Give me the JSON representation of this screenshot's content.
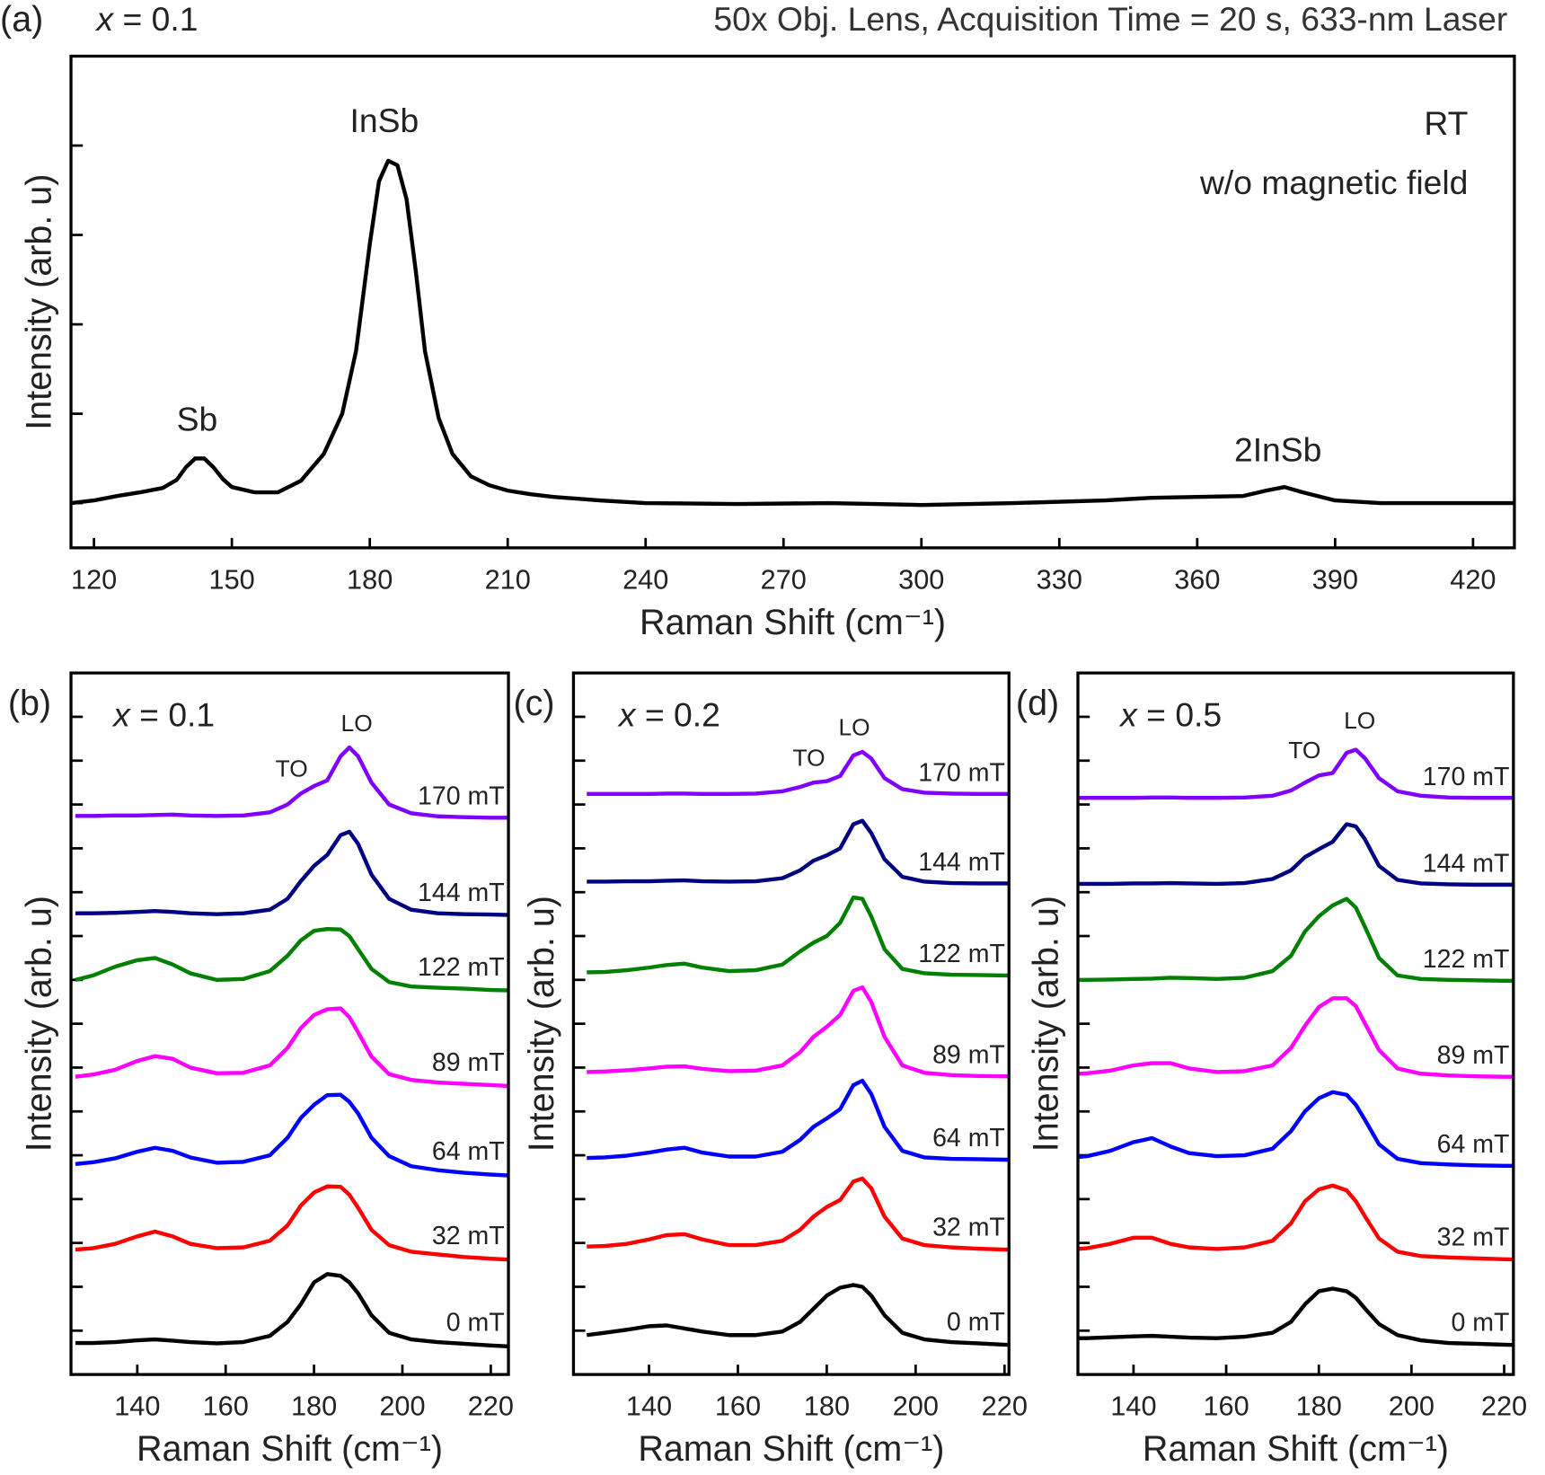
{
  "chart_data": [
    {
      "type": "line",
      "panel_label": "(a)",
      "panel_title": "x = 0.1",
      "title": "50x Obj. Lens, Acquisition Time = 20 s, 633-nm Laser",
      "annotations": [
        "RT",
        "w/o magnetic field"
      ],
      "peak_labels": [
        "Sb",
        "InSb",
        "2InSb"
      ],
      "xlabel": "Raman Shift (cm⁻¹)",
      "ylabel": "Intensity (arb. u)",
      "xlim": [
        115,
        429
      ],
      "xticks": [
        120,
        150,
        180,
        210,
        240,
        270,
        300,
        330,
        360,
        390,
        420
      ],
      "ylim": [
        -0.5,
        5
      ],
      "yticks": [
        0,
        1,
        2,
        3,
        4
      ],
      "color": "#000000",
      "x": [
        115,
        120,
        125,
        130,
        135,
        138,
        140,
        142,
        144,
        146,
        148,
        150,
        155,
        160,
        165,
        170,
        174,
        177,
        180,
        182,
        184,
        186,
        188,
        190,
        192,
        195,
        198,
        202,
        206,
        210,
        215,
        220,
        230,
        240,
        260,
        280,
        300,
        320,
        340,
        350,
        360,
        370,
        375,
        379,
        383,
        390,
        400,
        410,
        429
      ],
      "values": [
        0.0,
        0.03,
        0.08,
        0.12,
        0.17,
        0.26,
        0.4,
        0.5,
        0.5,
        0.4,
        0.27,
        0.18,
        0.12,
        0.12,
        0.25,
        0.55,
        1.0,
        1.7,
        2.9,
        3.6,
        3.83,
        3.78,
        3.4,
        2.6,
        1.7,
        0.95,
        0.55,
        0.3,
        0.2,
        0.14,
        0.1,
        0.07,
        0.03,
        0.0,
        -0.01,
        0.0,
        -0.02,
        0.0,
        0.03,
        0.06,
        0.07,
        0.08,
        0.14,
        0.18,
        0.12,
        0.03,
        0.0,
        0.0,
        0.0
      ]
    },
    {
      "type": "line",
      "panel_label": "(b)",
      "panel_title": "x = 0.1",
      "peak_labels": [
        "TO",
        "LO"
      ],
      "xlabel": "Raman Shift (cm⁻¹)",
      "ylabel": "Intensity (arb. u)",
      "xlim": [
        125,
        224
      ],
      "xticks": [
        140,
        160,
        180,
        200,
        220
      ],
      "ylim": [
        0,
        16
      ],
      "yticks": [
        1,
        2,
        3,
        4,
        5,
        6,
        7,
        8,
        9,
        10,
        11,
        12,
        13,
        14,
        15
      ],
      "x": [
        126,
        130,
        135,
        140,
        144,
        148,
        152,
        158,
        164,
        170,
        174,
        177,
        180,
        183,
        186,
        188,
        190,
        193,
        197,
        202,
        208,
        214,
        220,
        224
      ],
      "series": [
        {
          "name": "0 mT",
          "color": "#000000",
          "values": [
            0.72,
            0.72,
            0.74,
            0.78,
            0.8,
            0.77,
            0.74,
            0.71,
            0.74,
            0.88,
            1.2,
            1.6,
            2.1,
            2.29,
            2.25,
            2.1,
            1.85,
            1.35,
            0.95,
            0.8,
            0.74,
            0.7,
            0.66,
            0.64
          ]
        },
        {
          "name": "32 mT",
          "color": "#ff0000",
          "values": [
            2.85,
            2.88,
            2.98,
            3.15,
            3.26,
            3.15,
            2.98,
            2.88,
            2.9,
            3.05,
            3.4,
            3.85,
            4.15,
            4.29,
            4.28,
            4.1,
            3.8,
            3.3,
            2.95,
            2.8,
            2.74,
            2.68,
            2.64,
            2.62
          ]
        },
        {
          "name": "64 mT",
          "color": "#0000ff",
          "values": [
            4.8,
            4.84,
            4.93,
            5.08,
            5.17,
            5.1,
            4.95,
            4.83,
            4.85,
            5.0,
            5.4,
            5.85,
            6.15,
            6.37,
            6.38,
            6.22,
            5.95,
            5.4,
            4.98,
            4.75,
            4.66,
            4.6,
            4.56,
            4.54
          ]
        },
        {
          "name": "89 mT",
          "color": "#ff00ff",
          "values": [
            6.79,
            6.84,
            6.95,
            7.15,
            7.26,
            7.2,
            7.0,
            6.87,
            6.88,
            7.05,
            7.45,
            7.9,
            8.2,
            8.33,
            8.35,
            8.15,
            7.8,
            7.25,
            6.85,
            6.72,
            6.66,
            6.63,
            6.6,
            6.58
          ]
        },
        {
          "name": "122 mT",
          "color": "#008000",
          "values": [
            9.0,
            9.1,
            9.3,
            9.45,
            9.5,
            9.35,
            9.15,
            9.0,
            9.02,
            9.2,
            9.55,
            9.9,
            10.12,
            10.16,
            10.15,
            10.0,
            9.7,
            9.25,
            8.95,
            8.85,
            8.82,
            8.8,
            8.77,
            8.76
          ]
        },
        {
          "name": "144 mT",
          "color": "#000080",
          "values": [
            10.52,
            10.52,
            10.53,
            10.55,
            10.57,
            10.55,
            10.52,
            10.5,
            10.52,
            10.6,
            10.85,
            11.25,
            11.6,
            11.85,
            12.3,
            12.38,
            12.1,
            11.4,
            10.85,
            10.6,
            10.52,
            10.5,
            10.49,
            10.48
          ]
        },
        {
          "name": "170 mT",
          "color": "#8000ff",
          "values": [
            12.74,
            12.74,
            12.75,
            12.75,
            12.76,
            12.77,
            12.75,
            12.74,
            12.75,
            12.82,
            13.0,
            13.25,
            13.42,
            13.55,
            14.1,
            14.3,
            14.1,
            13.5,
            13.0,
            12.8,
            12.73,
            12.71,
            12.7,
            12.7
          ]
        }
      ]
    },
    {
      "type": "line",
      "panel_label": "(c)",
      "panel_title": "x = 0.2",
      "peak_labels": [
        "TO",
        "LO"
      ],
      "xlabel": "Raman Shift (cm⁻¹)",
      "ylabel": "Intensity (arb. u)",
      "xlim": [
        123,
        221
      ],
      "xticks": [
        140,
        160,
        180,
        200,
        220
      ],
      "ylim": [
        0,
        16
      ],
      "yticks": [
        1,
        2,
        3,
        4,
        5,
        6,
        7,
        8,
        9,
        10,
        11,
        12,
        13,
        14,
        15
      ],
      "x": [
        126,
        130,
        135,
        140,
        144,
        148,
        152,
        158,
        164,
        170,
        174,
        177,
        180,
        183,
        186,
        188,
        190,
        193,
        197,
        202,
        208,
        214,
        220,
        224
      ],
      "series": [
        {
          "name": "0 mT",
          "color": "#000000",
          "values": [
            0.9,
            0.95,
            1.02,
            1.1,
            1.12,
            1.05,
            0.98,
            0.9,
            0.9,
            0.98,
            1.2,
            1.5,
            1.8,
            1.98,
            2.04,
            2.0,
            1.8,
            1.35,
            0.95,
            0.8,
            0.74,
            0.71,
            0.68,
            0.67
          ]
        },
        {
          "name": "32 mT",
          "color": "#ff0000",
          "values": [
            2.92,
            2.93,
            2.98,
            3.08,
            3.18,
            3.2,
            3.08,
            2.95,
            2.95,
            3.05,
            3.3,
            3.6,
            3.82,
            3.98,
            4.4,
            4.47,
            4.25,
            3.6,
            3.1,
            2.95,
            2.9,
            2.87,
            2.85,
            2.85
          ]
        },
        {
          "name": "64 mT",
          "color": "#0000ff",
          "values": [
            4.94,
            4.95,
            4.99,
            5.06,
            5.13,
            5.17,
            5.06,
            4.97,
            4.97,
            5.08,
            5.35,
            5.65,
            5.84,
            6.05,
            6.6,
            6.7,
            6.4,
            5.65,
            5.1,
            4.95,
            4.92,
            4.91,
            4.9,
            4.9
          ]
        },
        {
          "name": "89 mT",
          "color": "#ff00ff",
          "values": [
            6.9,
            6.91,
            6.94,
            6.98,
            7.02,
            7.03,
            6.97,
            6.92,
            6.93,
            7.05,
            7.35,
            7.7,
            7.93,
            8.2,
            8.75,
            8.83,
            8.5,
            7.7,
            7.05,
            6.88,
            6.83,
            6.81,
            6.8,
            6.79
          ]
        },
        {
          "name": "122 mT",
          "color": "#008000",
          "values": [
            9.17,
            9.18,
            9.22,
            9.28,
            9.34,
            9.37,
            9.28,
            9.2,
            9.22,
            9.35,
            9.65,
            9.85,
            10.0,
            10.3,
            10.88,
            10.85,
            10.45,
            9.7,
            9.25,
            9.15,
            9.12,
            9.11,
            9.1,
            9.1
          ]
        },
        {
          "name": "144 mT",
          "color": "#000080",
          "values": [
            11.24,
            11.24,
            11.25,
            11.25,
            11.26,
            11.27,
            11.25,
            11.24,
            11.25,
            11.32,
            11.5,
            11.72,
            11.84,
            12.0,
            12.55,
            12.63,
            12.35,
            11.75,
            11.35,
            11.24,
            11.21,
            11.2,
            11.2,
            11.2
          ]
        },
        {
          "name": "170 mT",
          "color": "#8000ff",
          "values": [
            13.24,
            13.24,
            13.24,
            13.24,
            13.25,
            13.25,
            13.24,
            13.24,
            13.25,
            13.3,
            13.4,
            13.5,
            13.53,
            13.65,
            14.12,
            14.2,
            14.05,
            13.6,
            13.35,
            13.27,
            13.25,
            13.24,
            13.24,
            13.24
          ]
        }
      ]
    },
    {
      "type": "line",
      "panel_label": "(d)",
      "panel_title": "x = 0.5",
      "peak_labels": [
        "TO",
        "LO"
      ],
      "xlabel": "Raman Shift (cm⁻¹)",
      "ylabel": "Intensity (arb. u)",
      "xlim": [
        128,
        222
      ],
      "xticks": [
        140,
        160,
        180,
        200,
        220
      ],
      "ylim": [
        0,
        16
      ],
      "yticks": [
        1,
        2,
        3,
        4,
        5,
        6,
        7,
        8,
        9,
        10,
        11,
        12,
        13,
        14,
        15
      ],
      "x": [
        126,
        130,
        135,
        140,
        144,
        148,
        152,
        158,
        164,
        170,
        174,
        177,
        180,
        183,
        186,
        188,
        190,
        193,
        197,
        202,
        208,
        214,
        220,
        224
      ],
      "series": [
        {
          "name": "0 mT",
          "color": "#000000",
          "values": [
            0.83,
            0.83,
            0.85,
            0.87,
            0.88,
            0.86,
            0.84,
            0.83,
            0.86,
            0.95,
            1.2,
            1.6,
            1.9,
            1.96,
            1.9,
            1.75,
            1.5,
            1.15,
            0.9,
            0.78,
            0.72,
            0.7,
            0.68,
            0.67
          ]
        },
        {
          "name": "32 mT",
          "color": "#ff0000",
          "values": [
            2.85,
            2.88,
            2.98,
            3.12,
            3.12,
            2.98,
            2.9,
            2.86,
            2.9,
            3.05,
            3.45,
            3.95,
            4.22,
            4.31,
            4.2,
            3.95,
            3.6,
            3.1,
            2.8,
            2.7,
            2.67,
            2.65,
            2.63,
            2.62
          ]
        },
        {
          "name": "64 mT",
          "color": "#0000ff",
          "values": [
            4.94,
            4.98,
            5.1,
            5.3,
            5.39,
            5.2,
            5.05,
            4.98,
            5.0,
            5.15,
            5.55,
            6.0,
            6.3,
            6.44,
            6.38,
            6.15,
            5.8,
            5.25,
            4.92,
            4.82,
            4.79,
            4.77,
            4.76,
            4.76
          ]
        },
        {
          "name": "89 mT",
          "color": "#ff00ff",
          "values": [
            6.85,
            6.87,
            6.93,
            7.05,
            7.1,
            7.1,
            6.98,
            6.9,
            6.92,
            7.05,
            7.45,
            7.95,
            8.38,
            8.58,
            8.58,
            8.4,
            8.0,
            7.4,
            6.98,
            6.86,
            6.82,
            6.8,
            6.79,
            6.79
          ]
        },
        {
          "name": "122 mT",
          "color": "#008000",
          "values": [
            9.0,
            9.0,
            9.01,
            9.02,
            9.03,
            9.05,
            9.04,
            9.02,
            9.05,
            9.2,
            9.55,
            10.1,
            10.45,
            10.7,
            10.85,
            10.65,
            10.2,
            9.5,
            9.1,
            9.02,
            9.0,
            8.99,
            8.98,
            8.98
          ]
        },
        {
          "name": "144 mT",
          "color": "#000080",
          "values": [
            11.19,
            11.19,
            11.19,
            11.2,
            11.2,
            11.21,
            11.2,
            11.19,
            11.21,
            11.3,
            11.5,
            11.8,
            11.98,
            12.15,
            12.55,
            12.5,
            12.2,
            11.6,
            11.28,
            11.2,
            11.18,
            11.17,
            11.17,
            11.17
          ]
        },
        {
          "name": "170 mT",
          "color": "#8000ff",
          "values": [
            13.15,
            13.15,
            13.15,
            13.15,
            13.16,
            13.16,
            13.15,
            13.15,
            13.16,
            13.2,
            13.32,
            13.5,
            13.66,
            13.72,
            14.18,
            14.25,
            14.05,
            13.6,
            13.3,
            13.2,
            13.16,
            13.15,
            13.15,
            13.15
          ]
        }
      ]
    }
  ]
}
